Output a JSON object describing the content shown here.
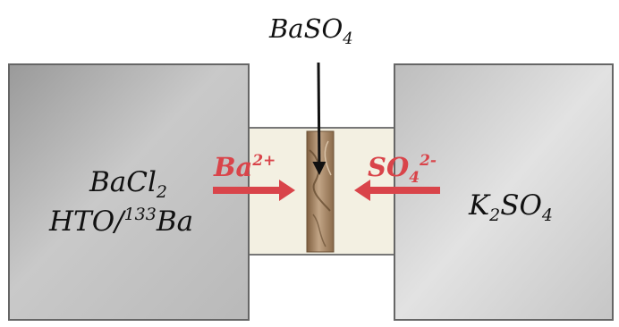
{
  "title": {
    "base": "BaSO",
    "sub": "4"
  },
  "left_reservoir": {
    "line1_base": "BaCl",
    "line1_sub": "2",
    "line2_prefix": "HTO/",
    "line2_sup": "133",
    "line2_suffix": "Ba"
  },
  "right_reservoir": {
    "base1": "K",
    "sub1": "2",
    "base2": "SO",
    "sub2": "4"
  },
  "cation": {
    "base": "Ba",
    "sup": "2+"
  },
  "anion": {
    "base": "SO",
    "sub": "4",
    "sup": "2-"
  },
  "colors": {
    "ion_text": "#d9444a",
    "ion_arrow": "#d9444a",
    "pointer_arrow": "#111111",
    "channel": "#f3f0e2",
    "barite_precipitate": "#a98b6c"
  }
}
